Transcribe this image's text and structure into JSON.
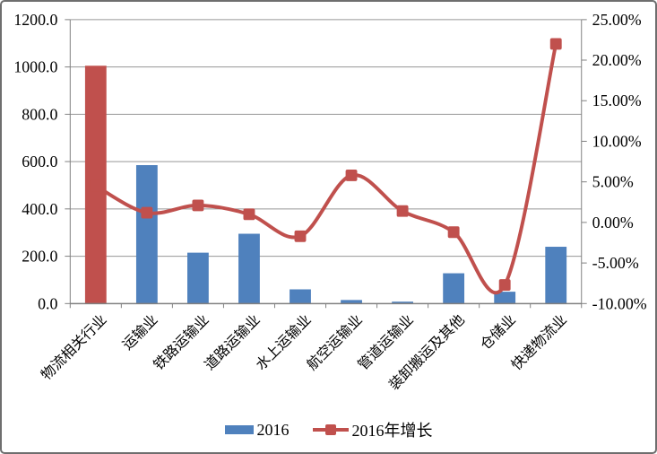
{
  "chart_data": {
    "type": "combo",
    "title": "",
    "categories": [
      "物流相关行业",
      "运输业",
      "铁路运输业",
      "道路运输业",
      "水上运输业",
      "航空运输业",
      "管道运输业",
      "装卸搬运及其他",
      "仓储业",
      "快递物流业"
    ],
    "series": [
      {
        "name": "2016",
        "type": "bar",
        "axis": "left",
        "values": [
          1005,
          585,
          215,
          295,
          60,
          15,
          8,
          128,
          50,
          240
        ],
        "color": "#4F81BD",
        "first_bar_color": "#C0504D"
      },
      {
        "name": "2016年增长",
        "type": "line",
        "axis": "right",
        "unit": "%",
        "values": [
          4.5,
          1.2,
          2.1,
          1.0,
          -1.7,
          5.8,
          1.4,
          -1.2,
          -7.7,
          22.0
        ],
        "color": "#C0504D",
        "marker": "square",
        "smooth": true
      }
    ],
    "left_axis": {
      "min": 0,
      "max": 1200,
      "step": 200,
      "tick_labels": [
        "0.0",
        "200.0",
        "400.0",
        "600.0",
        "800.0",
        "1000.0",
        "1200.0"
      ]
    },
    "right_axis": {
      "min": -10,
      "max": 25,
      "step": 5,
      "tick_labels": [
        "-10.00%",
        "-5.00%",
        "0.00%",
        "5.00%",
        "10.00%",
        "15.00%",
        "20.00%",
        "25.00%"
      ]
    },
    "grid": true,
    "legend_position": "bottom"
  },
  "colors": {
    "gridline": "#969696",
    "axis_line": "#808080",
    "tick_text": "#000000",
    "background": "#ffffff",
    "frame_border": "#6e6e6e"
  }
}
